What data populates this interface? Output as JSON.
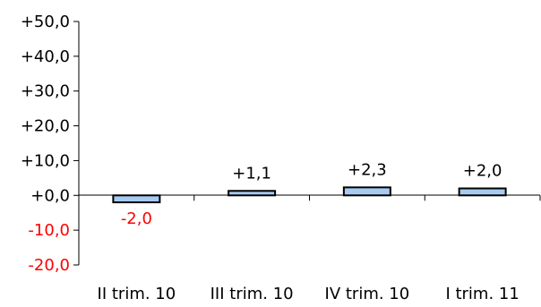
{
  "chart_data": {
    "type": "bar",
    "title": "",
    "xlabel": "",
    "ylabel": "",
    "categories": [
      "II trim. 10",
      "III trim. 10",
      "IV trim. 10",
      "I trim. 11"
    ],
    "values": [
      -2.0,
      1.1,
      2.3,
      2.0
    ],
    "data_labels": [
      "-2,0",
      "+1,1",
      "+2,3",
      "+2,0"
    ],
    "yticks": [
      50,
      40,
      30,
      20,
      10,
      0,
      -10,
      -20
    ],
    "ytick_labels": [
      "+50,0",
      "+40,0",
      "+30,0",
      "+20,0",
      "+10,0",
      "+0,0",
      "-10,0",
      "-20,0"
    ],
    "ylim": [
      -20,
      50
    ],
    "grid": false,
    "legend": "none",
    "colors": {
      "bar_fill": "#a6caf0",
      "bar_stroke": "#000000",
      "positive_text": "#000000",
      "negative_text": "#ff0000",
      "axis": "#000000"
    }
  }
}
